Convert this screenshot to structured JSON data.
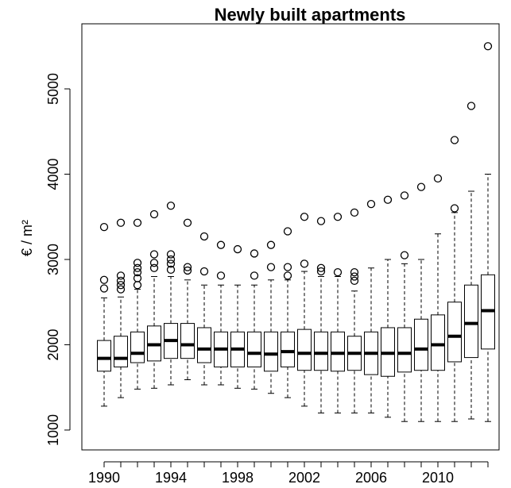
{
  "chart_data": {
    "type": "boxplot",
    "title": "Newly built apartments",
    "ylabel": "€ / m²",
    "categories": [
      "1990",
      null,
      null,
      null,
      "1994",
      null,
      null,
      null,
      "1998",
      null,
      null,
      null,
      "2002",
      null,
      null,
      null,
      "2006",
      null,
      null,
      null,
      "2010",
      null,
      null,
      null
    ],
    "boxes": [
      {
        "whisker_low": 1280,
        "q1": 1690,
        "median": 1840,
        "q3": 2050,
        "whisker_high": 2550,
        "outliers": [
          2660,
          2760,
          3380
        ]
      },
      {
        "whisker_low": 1380,
        "q1": 1740,
        "median": 1840,
        "q3": 2100,
        "whisker_high": 2560,
        "outliers": [
          2650,
          2700,
          2750,
          2810,
          3430
        ]
      },
      {
        "whisker_low": 1480,
        "q1": 1790,
        "median": 1900,
        "q3": 2150,
        "whisker_high": 2650,
        "outliers": [
          2700,
          2780,
          2850,
          2900,
          2960,
          3430
        ]
      },
      {
        "whisker_low": 1490,
        "q1": 1810,
        "median": 2000,
        "q3": 2220,
        "whisker_high": 2800,
        "outliers": [
          2900,
          2960,
          3060,
          3530
        ]
      },
      {
        "whisker_low": 1530,
        "q1": 1840,
        "median": 2050,
        "q3": 2250,
        "whisker_high": 2800,
        "outliers": [
          2880,
          2950,
          3000,
          3060,
          3630
        ]
      },
      {
        "whisker_low": 1590,
        "q1": 1840,
        "median": 2000,
        "q3": 2250,
        "whisker_high": 2760,
        "outliers": [
          2870,
          2910,
          3430
        ]
      },
      {
        "whisker_low": 1530,
        "q1": 1790,
        "median": 1950,
        "q3": 2200,
        "whisker_high": 2700,
        "outliers": [
          2860,
          3270
        ]
      },
      {
        "whisker_low": 1530,
        "q1": 1740,
        "median": 1950,
        "q3": 2150,
        "whisker_high": 2700,
        "outliers": [
          2810,
          3170
        ]
      },
      {
        "whisker_low": 1490,
        "q1": 1740,
        "median": 1950,
        "q3": 2150,
        "whisker_high": 2700,
        "outliers": [
          3120
        ]
      },
      {
        "whisker_low": 1480,
        "q1": 1740,
        "median": 1900,
        "q3": 2150,
        "whisker_high": 2700,
        "outliers": [
          2810,
          3070
        ]
      },
      {
        "whisker_low": 1430,
        "q1": 1690,
        "median": 1890,
        "q3": 2150,
        "whisker_high": 2760,
        "outliers": [
          2910,
          3170
        ]
      },
      {
        "whisker_low": 1380,
        "q1": 1740,
        "median": 1920,
        "q3": 2150,
        "whisker_high": 2760,
        "outliers": [
          2810,
          2910,
          3330
        ]
      },
      {
        "whisker_low": 1280,
        "q1": 1700,
        "median": 1900,
        "q3": 2180,
        "whisker_high": 2860,
        "outliers": [
          2950,
          3500
        ]
      },
      {
        "whisker_low": 1200,
        "q1": 1700,
        "median": 1900,
        "q3": 2150,
        "whisker_high": 2800,
        "outliers": [
          2860,
          2900,
          3450
        ]
      },
      {
        "whisker_low": 1200,
        "q1": 1690,
        "median": 1900,
        "q3": 2150,
        "whisker_high": 2800,
        "outliers": [
          2850,
          3500
        ]
      },
      {
        "whisker_low": 1200,
        "q1": 1700,
        "median": 1900,
        "q3": 2100,
        "whisker_high": 2630,
        "outliers": [
          2750,
          2800,
          2850,
          3550
        ]
      },
      {
        "whisker_low": 1200,
        "q1": 1650,
        "median": 1900,
        "q3": 2150,
        "whisker_high": 2900,
        "outliers": [
          3650
        ]
      },
      {
        "whisker_low": 1150,
        "q1": 1630,
        "median": 1900,
        "q3": 2200,
        "whisker_high": 3000,
        "outliers": [
          3700
        ]
      },
      {
        "whisker_low": 1100,
        "q1": 1680,
        "median": 1900,
        "q3": 2200,
        "whisker_high": 2950,
        "outliers": [
          3050,
          3750
        ]
      },
      {
        "whisker_low": 1100,
        "q1": 1700,
        "median": 1950,
        "q3": 2300,
        "whisker_high": 3000,
        "outliers": [
          3850
        ]
      },
      {
        "whisker_low": 1100,
        "q1": 1700,
        "median": 2000,
        "q3": 2350,
        "whisker_high": 3300,
        "outliers": [
          3950
        ]
      },
      {
        "whisker_low": 1100,
        "q1": 1800,
        "median": 2100,
        "q3": 2500,
        "whisker_high": 3550,
        "outliers": [
          3600,
          4400
        ]
      },
      {
        "whisker_low": 1130,
        "q1": 1850,
        "median": 2250,
        "q3": 2700,
        "whisker_high": 3800,
        "outliers": [
          4800
        ]
      },
      {
        "whisker_low": 1100,
        "q1": 1950,
        "median": 2400,
        "q3": 2820,
        "whisker_high": 4000,
        "outliers": [
          5500
        ]
      }
    ],
    "color": "#000000",
    "ylim": [
      767,
      5763
    ],
    "yticks": [
      1000,
      2000,
      3000,
      4000,
      5000
    ]
  }
}
